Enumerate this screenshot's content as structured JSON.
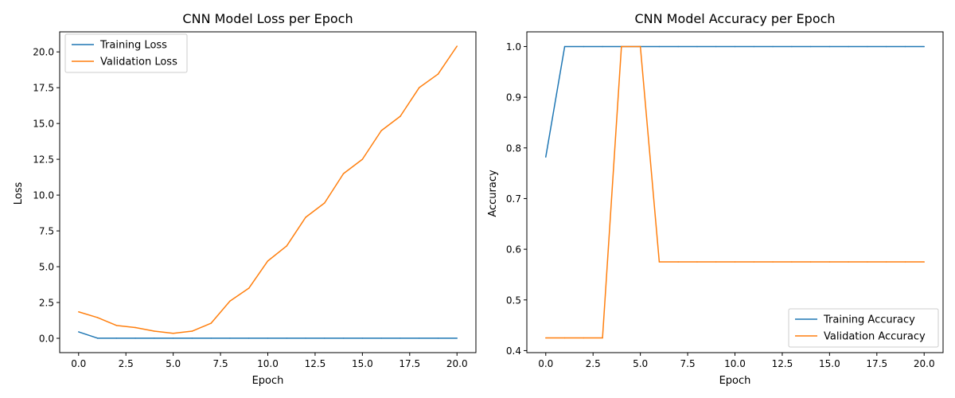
{
  "colors": {
    "training": "#1f77b4",
    "validation": "#ff7f0e"
  },
  "chart_data": [
    {
      "type": "line",
      "title": "CNN Model Loss per Epoch",
      "xlabel": "Epoch",
      "ylabel": "Loss",
      "xlim": [
        -1,
        21
      ],
      "ylim": [
        -1.0,
        21.4
      ],
      "xticks": [
        0,
        2.5,
        5,
        7.5,
        10,
        12.5,
        15,
        17.5,
        20
      ],
      "xtick_labels": [
        "0.0",
        "2.5",
        "5.0",
        "7.5",
        "10.0",
        "12.5",
        "15.0",
        "17.5",
        "20.0"
      ],
      "yticks": [
        0,
        2.5,
        5,
        7.5,
        10,
        12.5,
        15,
        17.5,
        20
      ],
      "ytick_labels": [
        "0.0",
        "2.5",
        "5.0",
        "7.5",
        "10.0",
        "12.5",
        "15.0",
        "17.5",
        "20.0"
      ],
      "legend_position": "top-left",
      "x": [
        0,
        1,
        2,
        3,
        4,
        5,
        6,
        7,
        8,
        9,
        10,
        11,
        12,
        13,
        14,
        15,
        16,
        17,
        18,
        19,
        20
      ],
      "series": [
        {
          "name": "Training Loss",
          "color_key": "training",
          "values": [
            0.45,
            0.01,
            0.01,
            0.01,
            0.01,
            0.01,
            0.01,
            0.01,
            0.01,
            0.01,
            0.01,
            0.01,
            0.01,
            0.01,
            0.01,
            0.01,
            0.01,
            0.01,
            0.01,
            0.01,
            0.01
          ]
        },
        {
          "name": "Validation Loss",
          "color_key": "validation",
          "values": [
            1.85,
            1.45,
            0.9,
            0.75,
            0.5,
            0.35,
            0.5,
            1.05,
            2.6,
            3.5,
            5.4,
            6.45,
            8.45,
            9.45,
            11.5,
            12.5,
            14.5,
            15.5,
            17.5,
            18.45,
            20.4
          ]
        }
      ]
    },
    {
      "type": "line",
      "title": "CNN Model Accuracy per Epoch",
      "xlabel": "Epoch",
      "ylabel": "Accuracy",
      "xlim": [
        -1,
        21
      ],
      "ylim": [
        0.396,
        1.029
      ],
      "xticks": [
        0,
        2.5,
        5,
        7.5,
        10,
        12.5,
        15,
        17.5,
        20
      ],
      "xtick_labels": [
        "0.0",
        "2.5",
        "5.0",
        "7.5",
        "10.0",
        "12.5",
        "15.0",
        "17.5",
        "20.0"
      ],
      "yticks": [
        0.4,
        0.5,
        0.6,
        0.7,
        0.8,
        0.9,
        1.0
      ],
      "ytick_labels": [
        "0.4",
        "0.5",
        "0.6",
        "0.7",
        "0.8",
        "0.9",
        "1.0"
      ],
      "legend_position": "bottom-right",
      "x": [
        0,
        1,
        2,
        3,
        4,
        5,
        6,
        7,
        8,
        9,
        10,
        11,
        12,
        13,
        14,
        15,
        16,
        17,
        18,
        19,
        20
      ],
      "series": [
        {
          "name": "Training Accuracy",
          "color_key": "training",
          "values": [
            0.782,
            1.0,
            1.0,
            1.0,
            1.0,
            1.0,
            1.0,
            1.0,
            1.0,
            1.0,
            1.0,
            1.0,
            1.0,
            1.0,
            1.0,
            1.0,
            1.0,
            1.0,
            1.0,
            1.0,
            1.0
          ]
        },
        {
          "name": "Validation Accuracy",
          "color_key": "validation",
          "values": [
            0.425,
            0.425,
            0.425,
            0.425,
            1.0,
            1.0,
            0.575,
            0.575,
            0.575,
            0.575,
            0.575,
            0.575,
            0.575,
            0.575,
            0.575,
            0.575,
            0.575,
            0.575,
            0.575,
            0.575,
            0.575
          ]
        }
      ]
    }
  ]
}
